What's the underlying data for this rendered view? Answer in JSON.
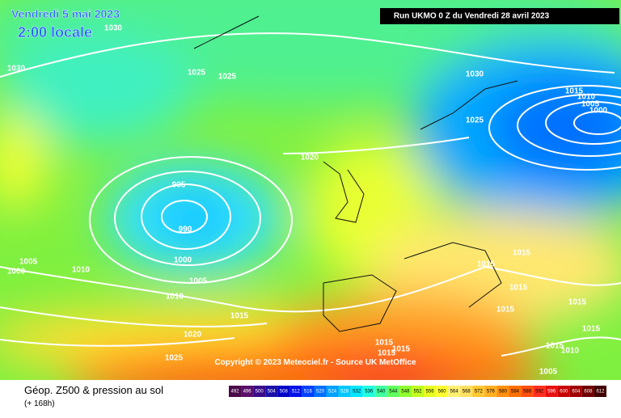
{
  "header": {
    "date": "Vendredi 5 mai 2023",
    "time": "2:00 locale",
    "run": "Run UKMO 0 Z du Vendredi 28 avril 2023"
  },
  "copyright": "Copyright © 2023 Meteociel.fr - Source UK MetOffice",
  "footer": {
    "title": "Géop. Z500 & pression au sol",
    "lead": "(+ 168h)"
  },
  "isobar_labels": [
    1030,
    1030,
    1025,
    1025,
    1030,
    1015,
    1010,
    1005,
    1000,
    1025,
    1020,
    995,
    990,
    1000,
    1005,
    1000,
    1010,
    1005,
    1010,
    1015,
    1020,
    1025,
    1015,
    1015,
    1015,
    1015,
    1015,
    1015,
    1015,
    1015,
    1015,
    1015,
    1010,
    1005
  ],
  "scale": {
    "labels": [
      492,
      496,
      500,
      504,
      508,
      512,
      516,
      520,
      524,
      528,
      532,
      536,
      540,
      544,
      548,
      552,
      556,
      560,
      564,
      568,
      572,
      576,
      580,
      584,
      588,
      592,
      596,
      600,
      604,
      608,
      612
    ],
    "colors": [
      "#4a0a4a",
      "#5a0f6a",
      "#3a0a8a",
      "#1a10a8",
      "#0000c8",
      "#0010e8",
      "#0040ff",
      "#0070ff",
      "#00a0ff",
      "#00c8ff",
      "#00e8ff",
      "#20ffe0",
      "#40ffa0",
      "#60ff60",
      "#90ff30",
      "#c0ff20",
      "#e8ff20",
      "#ffff30",
      "#fff070",
      "#ffe060",
      "#ffc830",
      "#ffb020",
      "#ff9010",
      "#ff7000",
      "#ff5010",
      "#ff3020",
      "#e81010",
      "#c80000",
      "#a00000",
      "#700000",
      "#400000"
    ]
  }
}
